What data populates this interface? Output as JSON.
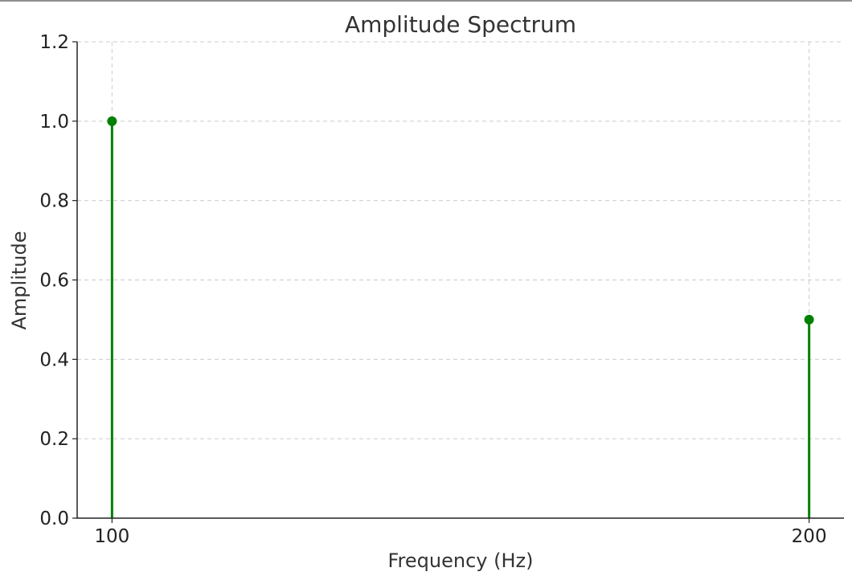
{
  "chart_data": {
    "type": "stem",
    "title": "Amplitude Spectrum",
    "xlabel": "Frequency (Hz)",
    "ylabel": "Amplitude",
    "x": [
      100,
      200
    ],
    "values": [
      1.0,
      0.5
    ],
    "xlim": [
      95,
      205
    ],
    "ylim": [
      0,
      1.2
    ],
    "xticks": [
      100,
      200
    ],
    "xtick_labels": [
      "100",
      "200"
    ],
    "yticks": [
      0,
      0.2,
      0.4,
      0.6,
      0.8,
      1.0,
      1.2
    ],
    "ytick_labels": [
      "0.0",
      "0.2",
      "0.4",
      "0.6",
      "0.8",
      "1.0",
      "1.2"
    ],
    "grid": true,
    "color": "#008000"
  }
}
